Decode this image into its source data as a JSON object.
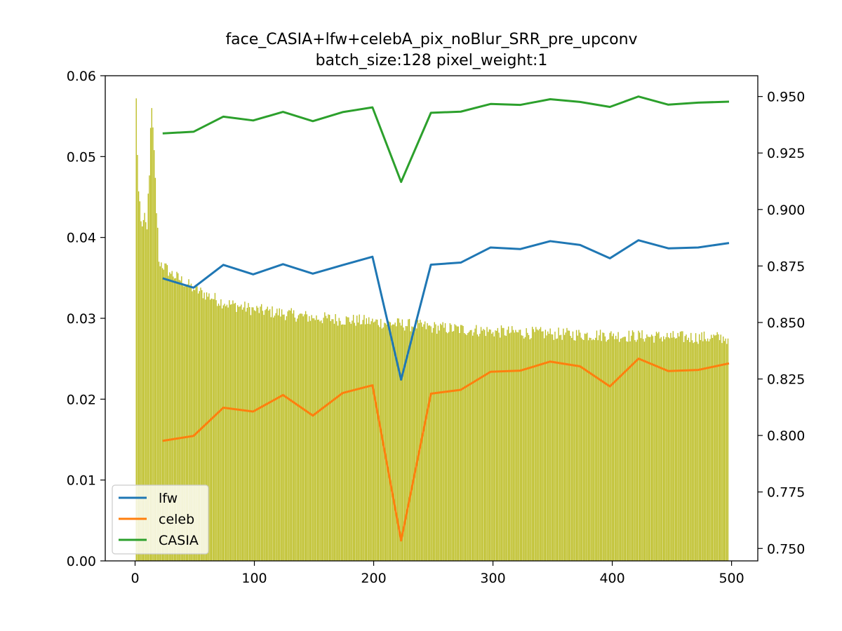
{
  "chart_data": {
    "type": "bar+line",
    "title": "face_CASIA+lfw+celebA_pix_noBlur_SRR_pre_upconv",
    "subtitle": "batch_size:128 pixel_weight:1",
    "xlabel": "",
    "ylabel": "",
    "xlim": [
      -25,
      522
    ],
    "ylim_left": [
      0,
      0.06
    ],
    "ylim_right": [
      0.7445,
      0.9592
    ],
    "x_ticks": [
      "0",
      "100",
      "200",
      "300",
      "400",
      "500"
    ],
    "x_tick_values": [
      0,
      100,
      200,
      300,
      400,
      500
    ],
    "y_left_ticks": [
      "0.00",
      "0.01",
      "0.02",
      "0.03",
      "0.04",
      "0.05",
      "0.06"
    ],
    "y_left_tick_values": [
      0,
      0.01,
      0.02,
      0.03,
      0.04,
      0.05,
      0.06
    ],
    "y_right_ticks": [
      "0.750",
      "0.775",
      "0.800",
      "0.825",
      "0.850",
      "0.875",
      "0.900",
      "0.925",
      "0.950"
    ],
    "y_right_tick_values": [
      0.75,
      0.775,
      0.8,
      0.825,
      0.85,
      0.875,
      0.9,
      0.925,
      0.95
    ],
    "bars": {
      "axis": "left",
      "color": "#bcbd22",
      "x_start": 1,
      "x_end": 497,
      "values_approx": [
        {
          "x": 1,
          "y": 0.0572
        },
        {
          "x": 2,
          "y": 0.0502
        },
        {
          "x": 3,
          "y": 0.0457
        },
        {
          "x": 5,
          "y": 0.042
        },
        {
          "x": 10,
          "y": 0.041
        },
        {
          "x": 14,
          "y": 0.056
        },
        {
          "x": 20,
          "y": 0.037
        },
        {
          "x": 30,
          "y": 0.0355
        },
        {
          "x": 50,
          "y": 0.0335
        },
        {
          "x": 75,
          "y": 0.0318
        },
        {
          "x": 100,
          "y": 0.031
        },
        {
          "x": 150,
          "y": 0.03
        },
        {
          "x": 200,
          "y": 0.0295
        },
        {
          "x": 250,
          "y": 0.0288
        },
        {
          "x": 300,
          "y": 0.0283
        },
        {
          "x": 350,
          "y": 0.028
        },
        {
          "x": 400,
          "y": 0.0278
        },
        {
          "x": 450,
          "y": 0.0276
        },
        {
          "x": 497,
          "y": 0.0275
        }
      ]
    },
    "x": [
      24,
      49,
      74,
      99,
      124,
      149,
      174,
      199,
      223,
      248,
      273,
      298,
      323,
      348,
      373,
      398,
      422,
      447,
      472,
      497
    ],
    "series": [
      {
        "name": "lfw",
        "color": "#1f77b4",
        "axis": "right",
        "values": [
          0.8694,
          0.8654,
          0.8755,
          0.8713,
          0.8758,
          0.8716,
          0.8754,
          0.8791,
          0.8247,
          0.8756,
          0.8765,
          0.8832,
          0.8825,
          0.886,
          0.8843,
          0.8784,
          0.8864,
          0.8828,
          0.8832,
          0.8851
        ]
      },
      {
        "name": "celeb",
        "color": "#ff7f0e",
        "axis": "right",
        "values": [
          0.7977,
          0.7998,
          0.8123,
          0.8106,
          0.8179,
          0.8088,
          0.8188,
          0.8222,
          0.7535,
          0.8185,
          0.8202,
          0.8282,
          0.8287,
          0.8327,
          0.8306,
          0.8217,
          0.834,
          0.8285,
          0.829,
          0.8318
        ]
      },
      {
        "name": "CASIA",
        "color": "#2ca02c",
        "axis": "right",
        "values": [
          0.9337,
          0.9344,
          0.9411,
          0.9394,
          0.9432,
          0.9391,
          0.9431,
          0.9452,
          0.9122,
          0.9428,
          0.9433,
          0.9467,
          0.9463,
          0.9488,
          0.9476,
          0.9454,
          0.95,
          0.9464,
          0.9473,
          0.9477
        ]
      }
    ],
    "legend": {
      "position": "lower-left",
      "entries": [
        "lfw",
        "celeb",
        "CASIA"
      ]
    },
    "grid": false
  }
}
